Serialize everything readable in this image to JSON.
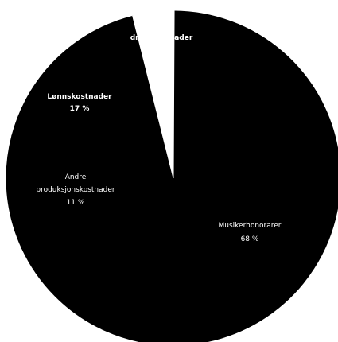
{
  "chart_data": {
    "type": "pie",
    "title": "",
    "slices": [
      {
        "label": "Musikerhonorarer",
        "value": 68,
        "value_label": "68 %",
        "color": "#000000"
      },
      {
        "label": "Andre produksjonskostnader",
        "value": 11,
        "value_label": "11 %",
        "color": "#000000"
      },
      {
        "label": "Lønnskostnader",
        "value": 17,
        "value_label": "17 %",
        "color": "#000000"
      },
      {
        "label": "driftskostnader",
        "value": 4,
        "value_label": "",
        "color": "#ffffff"
      }
    ],
    "legend": "none",
    "labels_inside": true
  }
}
